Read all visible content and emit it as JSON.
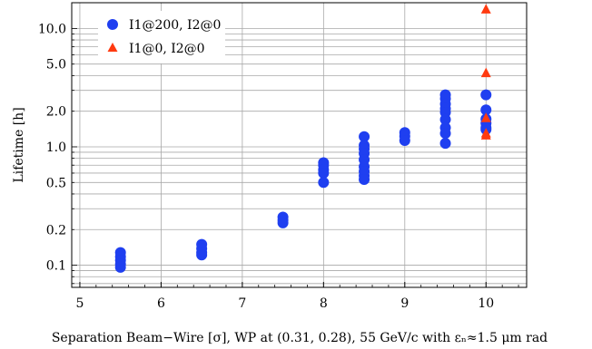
{
  "chart_data": {
    "type": "scatter",
    "xlabel": "Separation Beam−Wire [σ], WP at (0.31, 0.28), 55 GeV/c with εₙ≈1.5 μm rad",
    "ylabel": "Lifetime [h]",
    "xlim": [
      4.9,
      10.5
    ],
    "ylim": [
      0.065,
      16.5
    ],
    "yscale": "log",
    "x_ticks": [
      5,
      6,
      7,
      8,
      9,
      10
    ],
    "x_tick_labels": [
      "5",
      "6",
      "7",
      "8",
      "9",
      "10"
    ],
    "y_ticks": [
      0.1,
      0.2,
      0.5,
      1.0,
      2.0,
      5.0,
      10.0
    ],
    "y_tick_labels": [
      "0.1",
      "0.2",
      "0.5",
      "1.0",
      "2.0",
      "5.0",
      "10.0"
    ],
    "grid": true,
    "legend_position": "top-left",
    "series": [
      {
        "name": "I1@200, I2@0",
        "marker": "circle",
        "color": "#1f3ff0",
        "points": [
          [
            5.5,
            0.128
          ],
          [
            5.5,
            0.118
          ],
          [
            5.5,
            0.11
          ],
          [
            5.5,
            0.102
          ],
          [
            5.5,
            0.096
          ],
          [
            6.5,
            0.15
          ],
          [
            6.5,
            0.138
          ],
          [
            6.5,
            0.128
          ],
          [
            6.5,
            0.122
          ],
          [
            7.5,
            0.255
          ],
          [
            7.5,
            0.24
          ],
          [
            7.5,
            0.228
          ],
          [
            8.0,
            0.735
          ],
          [
            8.0,
            0.7
          ],
          [
            8.0,
            0.64
          ],
          [
            8.0,
            0.6
          ],
          [
            8.0,
            0.5
          ],
          [
            8.5,
            1.22
          ],
          [
            8.5,
            1.03
          ],
          [
            8.5,
            0.96
          ],
          [
            8.5,
            0.88
          ],
          [
            8.5,
            0.78
          ],
          [
            8.5,
            0.68
          ],
          [
            8.5,
            0.62
          ],
          [
            8.5,
            0.57
          ],
          [
            8.5,
            0.53
          ],
          [
            9.0,
            1.32
          ],
          [
            9.0,
            1.23
          ],
          [
            9.0,
            1.13
          ],
          [
            9.5,
            2.75
          ],
          [
            9.5,
            2.55
          ],
          [
            9.5,
            2.3
          ],
          [
            9.5,
            2.1
          ],
          [
            9.5,
            1.95
          ],
          [
            9.5,
            1.7
          ],
          [
            9.5,
            1.45
          ],
          [
            9.5,
            1.3
          ],
          [
            9.5,
            1.07
          ],
          [
            10.0,
            2.75
          ],
          [
            10.0,
            2.05
          ],
          [
            10.0,
            1.72
          ],
          [
            10.0,
            1.58
          ],
          [
            10.0,
            1.45
          ],
          [
            10.0,
            1.4
          ]
        ]
      },
      {
        "name": "I1@0, I2@0",
        "marker": "triangle",
        "color": "#ff3a10",
        "points": [
          [
            10.0,
            14.5
          ],
          [
            10.0,
            4.2
          ],
          [
            10.0,
            1.75
          ],
          [
            10.0,
            1.3
          ],
          [
            10.0,
            1.25
          ]
        ]
      }
    ]
  }
}
